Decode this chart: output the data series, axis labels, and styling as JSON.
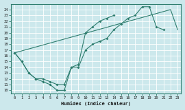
{
  "xlabel": "Humidex (Indice chaleur)",
  "bg_color": "#cce8ec",
  "grid_color": "#ffffff",
  "line_color": "#2e7d6e",
  "xlim": [
    -0.5,
    23.5
  ],
  "ylim": [
    9.5,
    25.0
  ],
  "xticks": [
    0,
    1,
    2,
    3,
    4,
    5,
    6,
    7,
    8,
    9,
    10,
    11,
    12,
    13,
    14,
    15,
    16,
    17,
    18,
    19,
    20,
    21,
    22,
    23
  ],
  "yticks": [
    10,
    11,
    12,
    13,
    14,
    15,
    16,
    17,
    18,
    19,
    20,
    21,
    22,
    23,
    24
  ],
  "line1_x": [
    0,
    1,
    2,
    3,
    4,
    5,
    6,
    7,
    8,
    9,
    10,
    11,
    12,
    13,
    14,
    15,
    16,
    17,
    18,
    19,
    20,
    21
  ],
  "line1_y": [
    16.5,
    15,
    13,
    12,
    11.5,
    11,
    10,
    10,
    14,
    14,
    17,
    18,
    18.5,
    19,
    20.5,
    21.5,
    22.5,
    23,
    24.5,
    24.5,
    21,
    20.5
  ],
  "line2_x": [
    0,
    1,
    2,
    3,
    4,
    5,
    6,
    7,
    8,
    9,
    10,
    11,
    12,
    13,
    14
  ],
  "line2_y": [
    16.5,
    15,
    13,
    12,
    12,
    11.5,
    11,
    11,
    14,
    14.5,
    20,
    21,
    22,
    22.5,
    23
  ],
  "line3_x": [
    0,
    22,
    23
  ],
  "line3_y": [
    16.5,
    24,
    20.5
  ]
}
